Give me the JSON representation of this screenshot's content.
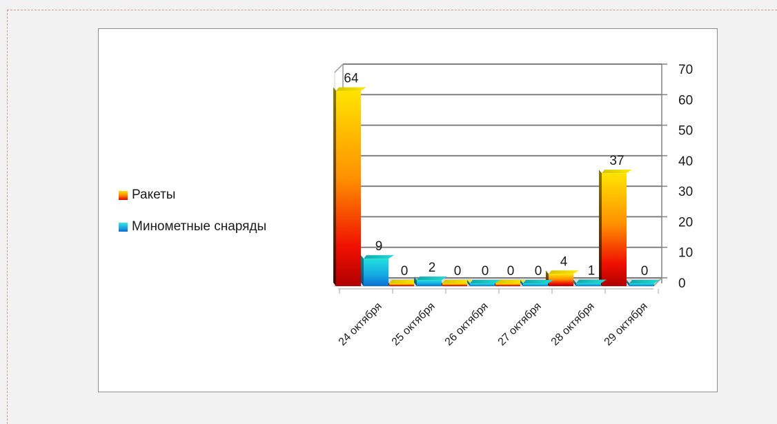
{
  "chart_data": {
    "type": "bar",
    "categories": [
      "24 октября",
      "25 октября",
      "26 октября",
      "27 октября",
      "28 октября",
      "29 октября"
    ],
    "series": [
      {
        "name": "Ракеты",
        "values": [
          64,
          0,
          0,
          0,
          4,
          37
        ]
      },
      {
        "name": "Минометные снаряды",
        "values": [
          9,
          2,
          0,
          0,
          1,
          0
        ]
      }
    ],
    "title": "",
    "xlabel": "",
    "ylabel": "",
    "ylim": [
      0,
      70
    ],
    "y_ticks": [
      "0",
      "10",
      "20",
      "30",
      "40",
      "50",
      "60",
      "70"
    ],
    "y_axis_side": "right",
    "grid": true,
    "legend_position": "left",
    "style": "3d-column",
    "colors": {
      "rockets": "#ff8a00",
      "mortar": "#1aa3e0"
    }
  }
}
